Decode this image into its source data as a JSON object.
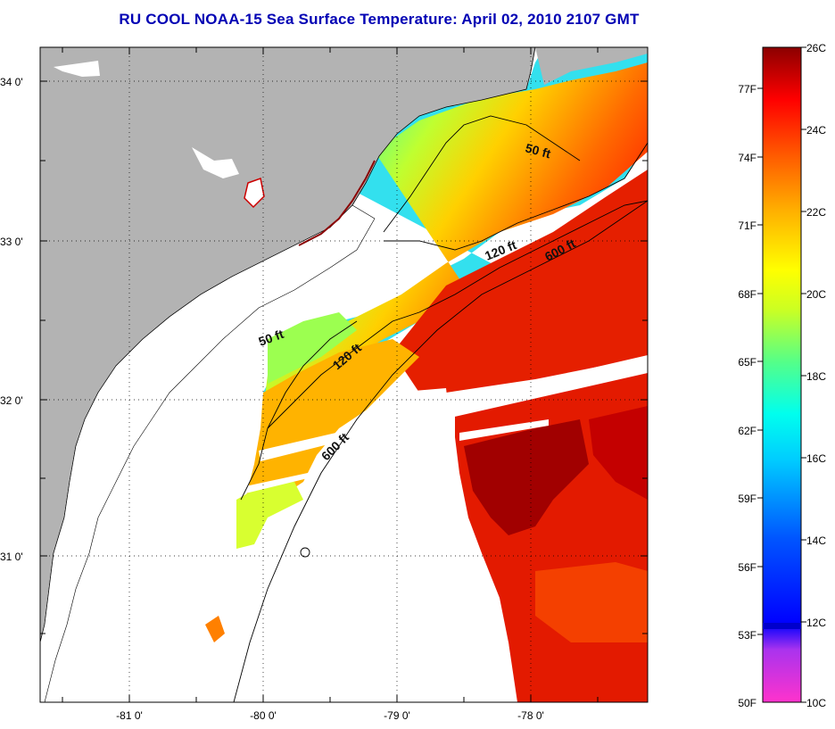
{
  "title": "RU COOL  NOAA-15  Sea Surface Temperature:  April 02, 2010 2107 GMT",
  "map": {
    "lat_ticks": [
      "34 0'",
      "33 0'",
      "32 0'",
      "31 0'"
    ],
    "lon_ticks": [
      "-81 0'",
      "-80 0'",
      "-79 0'",
      "-78 0'"
    ],
    "contours": {
      "c50a": "50 ft",
      "c50b": "50 ft",
      "c120a": "120 ft",
      "c120b": "120 ft",
      "c600a": "600 ft",
      "c600b": "600 ft"
    },
    "colors": {
      "land": "#b3b3b3",
      "no_data": "#ffffff",
      "grid": "#000000"
    }
  },
  "colorbar": {
    "fahrenheit": [
      "77F",
      "74F",
      "71F",
      "68F",
      "65F",
      "62F",
      "59F",
      "56F",
      "53F",
      "50F"
    ],
    "celsius": [
      "26C",
      "24C",
      "22C",
      "20C",
      "18C",
      "16C",
      "14C",
      "12C",
      "10C"
    ],
    "range_c": [
      10,
      26
    ],
    "gradient": [
      "#ff33cc",
      "#9933ff",
      "#0000ff",
      "#0055ff",
      "#00aaff",
      "#00ffff",
      "#44ff99",
      "#aaff33",
      "#ffff00",
      "#ffaa00",
      "#ff6600",
      "#ff0000",
      "#cc0000",
      "#8b0000"
    ]
  }
}
